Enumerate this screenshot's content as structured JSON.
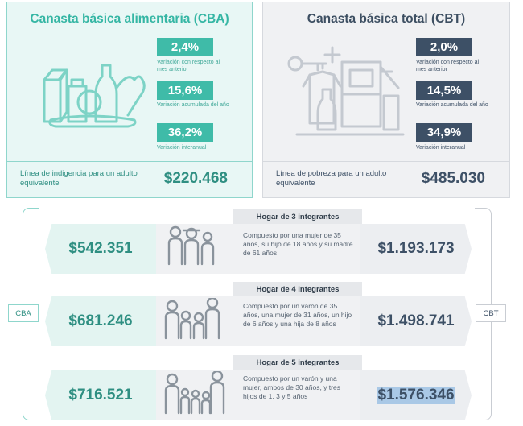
{
  "cba": {
    "title": "Canasta básica alimentaria (CBA)",
    "stats": [
      {
        "value": "2,4%",
        "label": "Variación con respecto al mes anterior"
      },
      {
        "value": "15,6%",
        "label": "Variación acumulada del año"
      },
      {
        "value": "36,2%",
        "label": "Variación interanual"
      }
    ],
    "line_label": "Línea de indigencia para un adulto equivalente",
    "line_value": "$220.468"
  },
  "cbt": {
    "title": "Canasta básica total (CBT)",
    "stats": [
      {
        "value": "2,0%",
        "label": "Variación con respecto al mes anterior"
      },
      {
        "value": "14,5%",
        "label": "Variación acumulada del año"
      },
      {
        "value": "34,9%",
        "label": "Variación interanual"
      }
    ],
    "line_label": "Línea de pobreza para un adulto equivalente",
    "line_value": "$485.030"
  },
  "side_labels": {
    "left": "CBA",
    "right": "CBT"
  },
  "households": [
    {
      "title": "Hogar de 3 integrantes",
      "description": "Compuesto por una mujer de 35 años, su hijo de 18 años y su madre de 61 años",
      "cba": "$542.351",
      "cbt": "$1.193.173"
    },
    {
      "title": "Hogar de 4 integrantes",
      "description": "Compuesto por un varón de 35 años, una mujer de 31 años, un hijo de 6 años y una hija de 8 años",
      "cba": "$681.246",
      "cbt": "$1.498.741"
    },
    {
      "title": "Hogar de 5 integrantes",
      "description": "Compuesto por un varón y una mujer, ambos de 30 años, y tres hijos de 1, 3 y 5 años",
      "cba": "$716.521",
      "cbt": "$1.576.346"
    }
  ],
  "colors": {
    "cba_accent": "#3fbba8",
    "cbt_accent": "#3d5066",
    "highlight": "#a9c8e6"
  },
  "icons": {
    "cba": "groceries-icon",
    "cbt": "household-goods-icon",
    "households": "family-icon"
  }
}
